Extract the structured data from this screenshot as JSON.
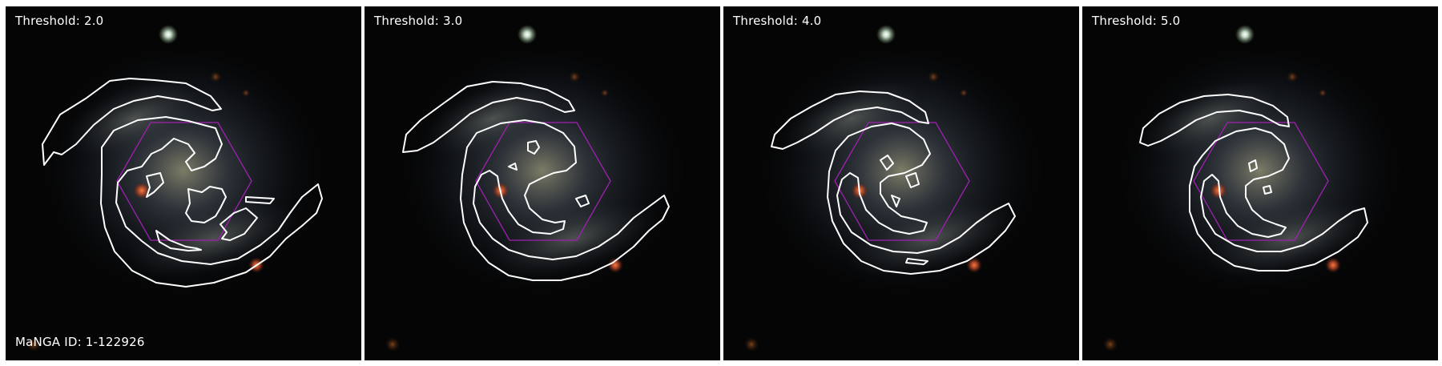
{
  "panels": [
    {
      "threshold_label": "Threshold: 2.0"
    },
    {
      "threshold_label": "Threshold: 3.0"
    },
    {
      "threshold_label": "Threshold: 4.0"
    },
    {
      "threshold_label": "Threshold: 5.0"
    }
  ],
  "manga_id_label": "MaNGA ID: 1-122926",
  "colors": {
    "contour": "#ffffff",
    "ifu_hexagon": "#a020b0",
    "background": "#050505"
  }
}
